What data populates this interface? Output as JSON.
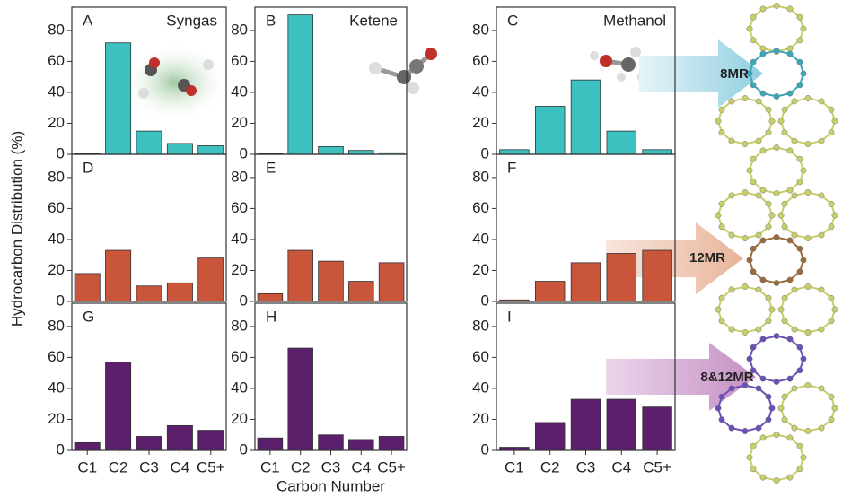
{
  "chart_data": [
    {
      "type": "bar",
      "panel": "A",
      "title": "Syngas",
      "values": [
        0.5,
        72,
        15,
        7,
        5.5
      ],
      "color": "#3cc0c0",
      "ylim": [
        0,
        95
      ],
      "yticks": [
        0,
        20,
        40,
        60,
        80
      ]
    },
    {
      "type": "bar",
      "panel": "B",
      "title": "Ketene",
      "values": [
        0.5,
        90,
        5,
        2.5,
        1
      ],
      "color": "#3cc0c0",
      "ylim": [
        0,
        95
      ],
      "yticks": [
        0,
        20,
        40,
        60,
        80
      ]
    },
    {
      "type": "bar",
      "panel": "C",
      "title": "Methanol",
      "values": [
        3,
        31,
        48,
        15,
        3
      ],
      "color": "#3cc0c0",
      "ylim": [
        0,
        95
      ],
      "yticks": [
        0,
        20,
        40,
        60,
        80
      ],
      "annotation": "8MR"
    },
    {
      "type": "bar",
      "panel": "D",
      "values": [
        18,
        33,
        10,
        12,
        28
      ],
      "color": "#c9553a",
      "ylim": [
        0,
        95
      ],
      "yticks": [
        0,
        20,
        40,
        60,
        80
      ],
      "ylabel": "Hydrocarbon Distribution (%)"
    },
    {
      "type": "bar",
      "panel": "E",
      "values": [
        5,
        33,
        26,
        13,
        25
      ],
      "color": "#c9553a",
      "ylim": [
        0,
        95
      ],
      "yticks": [
        0,
        20,
        40,
        60,
        80
      ]
    },
    {
      "type": "bar",
      "panel": "F",
      "values": [
        1,
        13,
        25,
        31,
        33
      ],
      "color": "#c9553a",
      "ylim": [
        0,
        95
      ],
      "yticks": [
        0,
        20,
        40,
        60,
        80
      ],
      "annotation": "12MR"
    },
    {
      "type": "bar",
      "panel": "G",
      "categories": [
        "C1",
        "C2",
        "C3",
        "C4",
        "C5+"
      ],
      "values": [
        5,
        57,
        9,
        16,
        13
      ],
      "color": "#5c1f6b",
      "ylim": [
        0,
        95
      ],
      "yticks": [
        0,
        20,
        40,
        60,
        80
      ]
    },
    {
      "type": "bar",
      "panel": "H",
      "categories": [
        "C1",
        "C2",
        "C3",
        "C4",
        "C5+"
      ],
      "values": [
        8,
        66,
        10,
        7,
        9
      ],
      "color": "#5c1f6b",
      "ylim": [
        0,
        95
      ],
      "yticks": [
        0,
        20,
        40,
        60,
        80
      ],
      "xlabel": "Carbon Number"
    },
    {
      "type": "bar",
      "panel": "I",
      "categories": [
        "C1",
        "C2",
        "C3",
        "C4",
        "C5+"
      ],
      "values": [
        2,
        18,
        33,
        33,
        28
      ],
      "color": "#5c1f6b",
      "ylim": [
        0,
        95
      ],
      "yticks": [
        0,
        20,
        40,
        60,
        80
      ],
      "annotation": "8&12MR"
    }
  ]
}
